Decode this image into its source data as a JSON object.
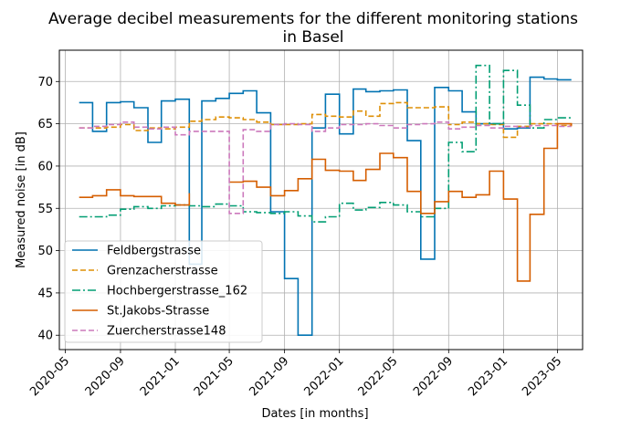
{
  "chart_data": {
    "type": "line",
    "step": true,
    "title_line1": "Average decibel measurements for the different monitoring stations",
    "title_line2": "in Basel",
    "xlabel": "Dates [in months]",
    "ylabel": "Measured noise [in dB]",
    "xlim": [
      "2020-04-18",
      "2023-06-26"
    ],
    "ylim": [
      38.3,
      73.7
    ],
    "x_ticks": [
      "2020-05",
      "2020-09",
      "2021-01",
      "2021-05",
      "2021-09",
      "2022-01",
      "2022-05",
      "2022-09",
      "2023-01",
      "2023-05"
    ],
    "y_ticks": [
      40,
      45,
      50,
      55,
      60,
      65,
      70
    ],
    "grid": true,
    "legend_position": "lower-left",
    "x": [
      "2020-06",
      "2020-07",
      "2020-08",
      "2020-09",
      "2020-10",
      "2020-11",
      "2020-12",
      "2021-01",
      "2021-02",
      "2021-03",
      "2021-04",
      "2021-05",
      "2021-06",
      "2021-07",
      "2021-08",
      "2021-09",
      "2021-10",
      "2021-11",
      "2021-12",
      "2022-01",
      "2022-02",
      "2022-03",
      "2022-04",
      "2022-05",
      "2022-06",
      "2022-07",
      "2022-08",
      "2022-09",
      "2022-10",
      "2022-11",
      "2022-12",
      "2023-01",
      "2023-02",
      "2023-03",
      "2023-04",
      "2023-05",
      "2023-06"
    ],
    "series": [
      {
        "name": "Feldbergstrasse",
        "color": "#0173b2",
        "dash": "solid",
        "values": [
          67.5,
          64.1,
          67.5,
          67.6,
          66.9,
          62.8,
          67.7,
          67.9,
          48.4,
          67.7,
          68.0,
          68.6,
          68.9,
          66.3,
          54.6,
          46.7,
          40.0,
          64.5,
          68.5,
          63.8,
          69.1,
          68.8,
          68.9,
          69.0,
          63.0,
          49.0,
          69.3,
          68.9,
          66.4,
          65.0,
          65.0,
          64.4,
          64.5,
          70.5,
          70.3,
          70.2,
          70.2
        ]
      },
      {
        "name": "Grenzacherstrasse",
        "color": "#de8f05",
        "dash": "6,3",
        "values": [
          64.5,
          64.5,
          64.6,
          64.9,
          64.2,
          64.5,
          64.4,
          64.6,
          65.3,
          65.5,
          65.8,
          65.7,
          65.5,
          65.2,
          64.9,
          64.9,
          65.0,
          66.1,
          65.9,
          65.8,
          66.5,
          65.9,
          67.4,
          67.5,
          66.9,
          66.9,
          67.0,
          64.9,
          65.2,
          65.0,
          64.9,
          63.4,
          64.7,
          65.0,
          65.0,
          64.8,
          64.7
        ]
      },
      {
        "name": "Hochbergerstrasse_162",
        "color": "#029e73",
        "dash": "9,3,2,3",
        "values": [
          54.0,
          54.0,
          54.2,
          54.9,
          55.2,
          55.0,
          55.3,
          55.4,
          55.3,
          55.2,
          55.5,
          55.3,
          54.6,
          54.5,
          54.4,
          54.6,
          54.1,
          53.4,
          54.0,
          55.6,
          54.8,
          55.1,
          55.7,
          55.4,
          54.6,
          54.0,
          55.0,
          62.8,
          61.7,
          71.9,
          65.0,
          71.3,
          67.2,
          64.5,
          65.5,
          65.7,
          65.7
        ]
      },
      {
        "name": "St.Jakobs-Strasse",
        "color": "#d55e00",
        "dash": "solid",
        "values": [
          56.3,
          56.5,
          57.2,
          56.5,
          56.4,
          56.4,
          55.6,
          55.4,
          56.8,
          null,
          null,
          58.1,
          58.2,
          57.5,
          56.5,
          57.1,
          58.5,
          60.8,
          59.5,
          59.4,
          58.3,
          59.6,
          61.5,
          61.0,
          57.0,
          54.4,
          55.8,
          57.0,
          56.3,
          56.6,
          59.4,
          56.1,
          46.4,
          54.3,
          62.1,
          65.0,
          64.8
        ]
      },
      {
        "name": "Zuercherstrasse148",
        "color": "#cc78bc",
        "dash": "6,3",
        "values": [
          64.5,
          64.7,
          64.9,
          65.2,
          64.6,
          64.4,
          64.6,
          63.7,
          64.1,
          64.1,
          64.1,
          54.4,
          64.3,
          64.1,
          64.9,
          65.0,
          64.9,
          64.1,
          64.5,
          64.9,
          64.9,
          65.0,
          64.8,
          64.5,
          64.9,
          65.0,
          65.2,
          64.4,
          64.6,
          64.8,
          64.5,
          64.7,
          64.6,
          64.8,
          64.8,
          64.7,
          64.7
        ]
      }
    ]
  }
}
